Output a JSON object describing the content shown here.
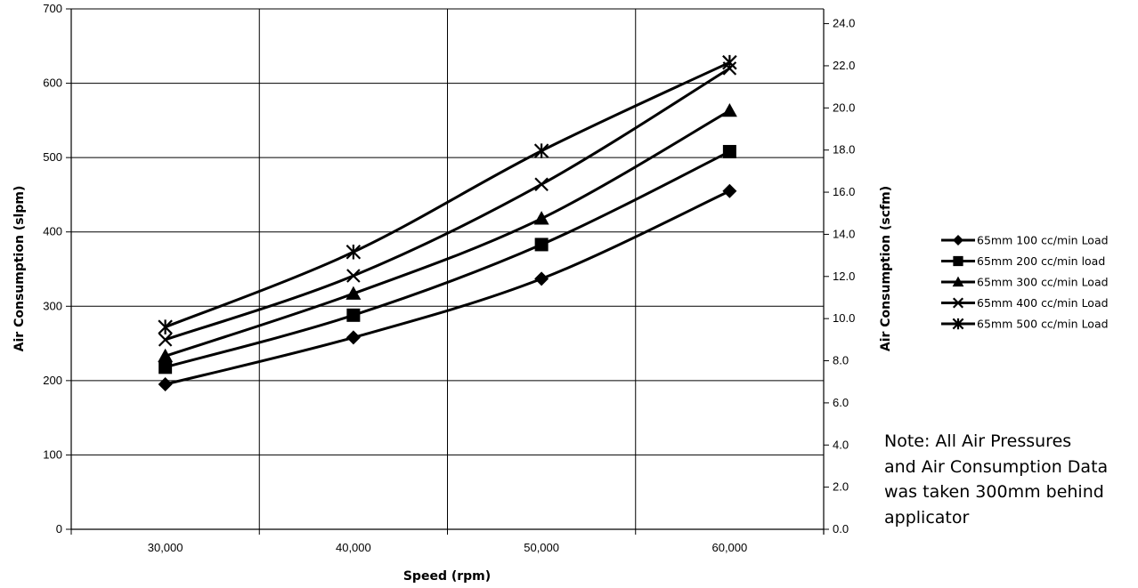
{
  "chart_data": {
    "type": "line",
    "categories": [
      "30,000",
      "40,000",
      "50,000",
      "60,000"
    ],
    "xlabel": "Speed (rpm)",
    "ylabel": "Air Consumption (slpm)",
    "y2label": "Air Consumption (scfm)",
    "ylim": [
      0,
      700
    ],
    "yticks": [
      0,
      100,
      200,
      300,
      400,
      500,
      600,
      700
    ],
    "y2lim": [
      0,
      24.7
    ],
    "y2ticks": [
      "0.0",
      "2.0",
      "4.0",
      "6.0",
      "8.0",
      "10.0",
      "12.0",
      "14.0",
      "16.0",
      "18.0",
      "20.0",
      "22.0",
      "24.0"
    ],
    "grid": true,
    "legend_position": "right",
    "series": [
      {
        "name": "65mm 100 cc/min Load",
        "marker": "diamond",
        "values": [
          195,
          258,
          337,
          455
        ]
      },
      {
        "name": "65mm 200 cc/min load",
        "marker": "square",
        "values": [
          218,
          288,
          383,
          508
        ]
      },
      {
        "name": "65mm 300 cc/min Load",
        "marker": "triangle",
        "values": [
          233,
          317,
          418,
          563
        ]
      },
      {
        "name": "65mm 400 cc/min Load",
        "marker": "x",
        "values": [
          255,
          341,
          464,
          620
        ]
      },
      {
        "name": "65mm 500 cc/min Load",
        "marker": "star",
        "values": [
          272,
          373,
          509,
          628
        ]
      }
    ]
  },
  "note": {
    "lines": [
      "Note: All Air Pressures",
      "and Air Consumption Data",
      "was taken 300mm behind",
      "applicator"
    ]
  },
  "colors": {
    "line": "#000000",
    "grid": "#000000",
    "background": "#ffffff"
  }
}
